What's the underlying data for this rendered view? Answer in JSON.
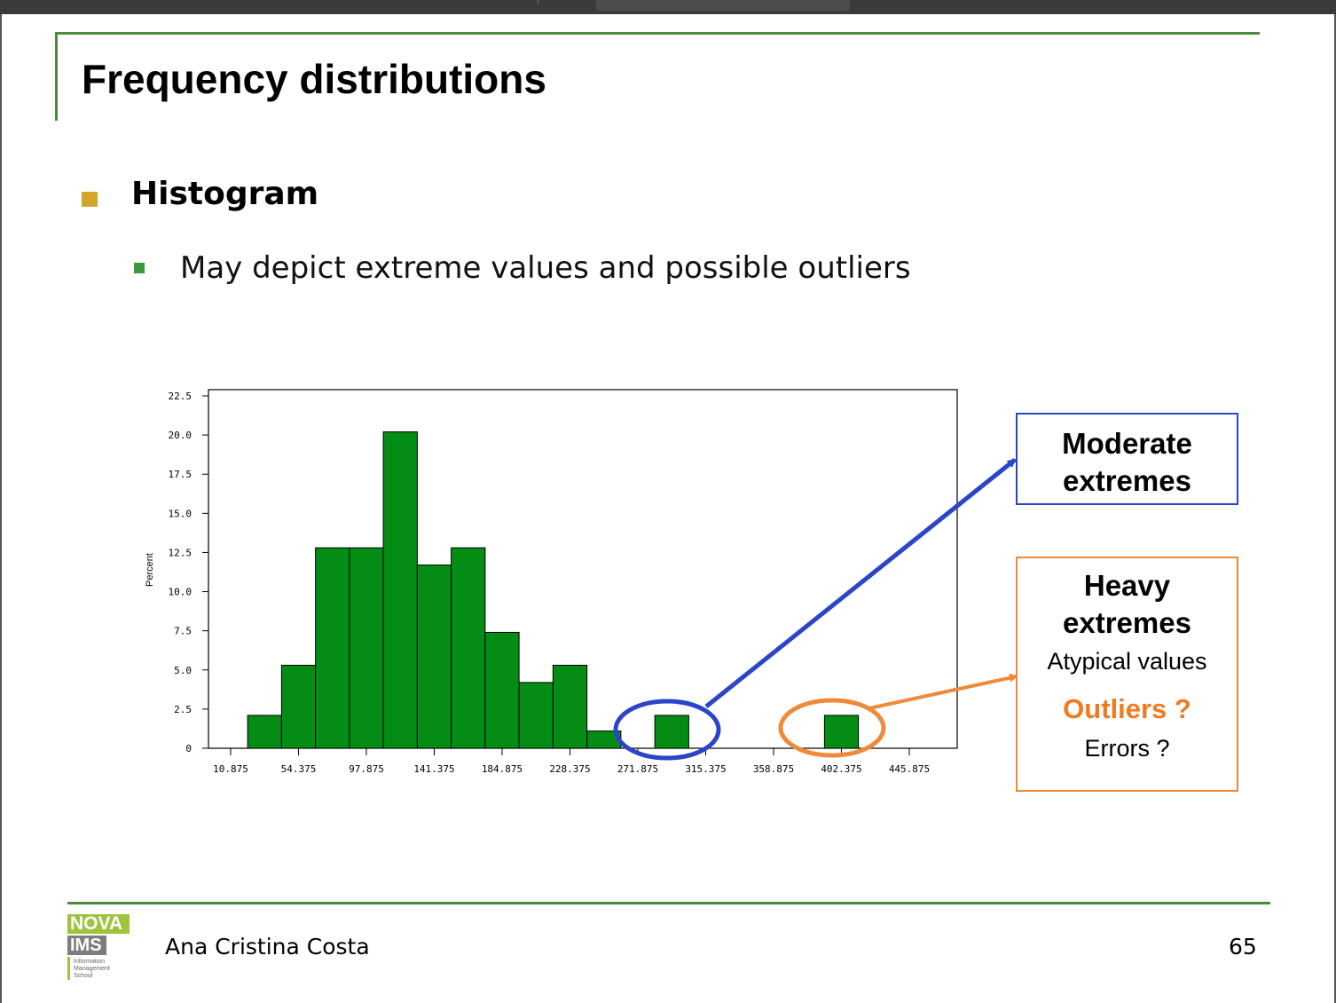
{
  "slide": {
    "title": "Frequency distributions",
    "bullet1": "Histogram",
    "bullet2": "May depict extreme values and possible outliers"
  },
  "callouts": {
    "moderate": {
      "line1": "Moderate",
      "line2": "extremes",
      "color": "#2a45c8"
    },
    "heavy": {
      "line1": "Heavy",
      "line2": "extremes",
      "line3": "Atypical values",
      "outliers": "Outliers  ?",
      "errors": "Errors  ?",
      "color": "#ef8a3a"
    }
  },
  "footer": {
    "author": "Ana Cristina Costa",
    "page": "65",
    "logo": {
      "line1": "NOVA",
      "line2": "IMS",
      "line3": "Information Management School"
    }
  },
  "colors": {
    "accent_green": "#4a8a3a",
    "bullet_gold": "#d3a62a",
    "bar_fill": "#058c14"
  },
  "chart_data": {
    "type": "bar",
    "ylabel": "Percent",
    "xlabel": "",
    "ylim": [
      0,
      22.5
    ],
    "yticks": [
      "0",
      "2.5",
      "5.0",
      "7.5",
      "10.0",
      "12.5",
      "15.0",
      "17.5",
      "20.0",
      "22.5"
    ],
    "xticks": [
      "10.875",
      "54.375",
      "97.875",
      "141.375",
      "184.875",
      "228.375",
      "271.875",
      "315.375",
      "358.875",
      "402.375",
      "445.875"
    ],
    "bins": [
      {
        "left": 21.75,
        "right": 43.5,
        "value": 2.1
      },
      {
        "left": 43.5,
        "right": 65.25,
        "value": 5.3
      },
      {
        "left": 65.25,
        "right": 87.0,
        "value": 12.8
      },
      {
        "left": 87.0,
        "right": 108.75,
        "value": 12.8
      },
      {
        "left": 108.75,
        "right": 130.5,
        "value": 20.2
      },
      {
        "left": 130.5,
        "right": 152.25,
        "value": 11.7
      },
      {
        "left": 152.25,
        "right": 174.0,
        "value": 12.8
      },
      {
        "left": 174.0,
        "right": 195.75,
        "value": 7.4
      },
      {
        "left": 195.75,
        "right": 217.5,
        "value": 4.2
      },
      {
        "left": 217.5,
        "right": 239.25,
        "value": 5.3
      },
      {
        "left": 239.25,
        "right": 261.0,
        "value": 1.1
      },
      {
        "left": 282.75,
        "right": 304.5,
        "value": 2.1
      },
      {
        "left": 391.5,
        "right": 413.25,
        "value": 2.1
      }
    ],
    "grid": false,
    "legend": "none"
  }
}
